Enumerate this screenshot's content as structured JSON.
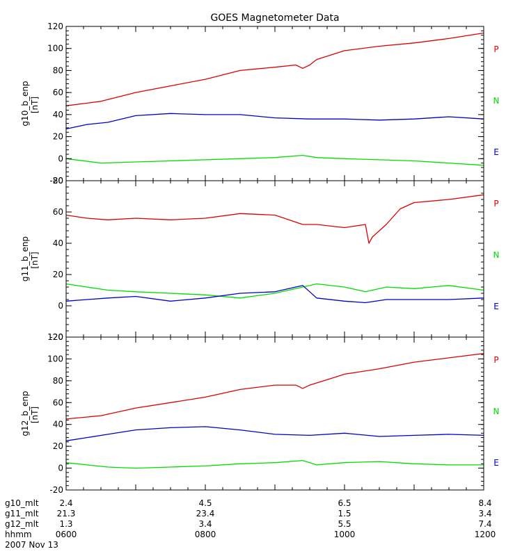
{
  "chart_data": {
    "title": "GOES Magnetometer Data",
    "type": "line",
    "x_range": [
      6,
      12
    ],
    "colors": {
      "P": "#dd0000",
      "N": "#00dd00",
      "E": "#0000cc"
    },
    "legend_labels": [
      "P",
      "N",
      "E"
    ],
    "panels": [
      {
        "ylabel": "g10_b_enp",
        "yunit": "[nT]",
        "ylim": [
          -20,
          120
        ],
        "yticks": [
          -20,
          0,
          20,
          40,
          60,
          80,
          100,
          120
        ],
        "series": [
          {
            "name": "P",
            "color": "#dd0000",
            "x": [
              6.0,
              6.5,
              7.0,
              7.5,
              8.0,
              8.5,
              9.0,
              9.3,
              9.4,
              9.5,
              9.6,
              9.8,
              10.0,
              10.5,
              11.0,
              11.5,
              12.0
            ],
            "y": [
              48,
              52,
              60,
              66,
              72,
              80,
              83,
              85,
              82,
              85,
              90,
              94,
              98,
              102,
              105,
              109,
              114
            ]
          },
          {
            "name": "E",
            "color": "#0000cc",
            "x": [
              6.0,
              6.3,
              6.6,
              7.0,
              7.5,
              8.0,
              8.5,
              9.0,
              9.5,
              10.0,
              10.5,
              11.0,
              11.5,
              12.0
            ],
            "y": [
              27,
              31,
              33,
              39,
              41,
              40,
              40,
              37,
              36,
              36,
              35,
              36,
              38,
              36
            ]
          },
          {
            "name": "N",
            "color": "#00dd00",
            "x": [
              6.0,
              6.5,
              7.0,
              7.5,
              8.0,
              8.5,
              9.0,
              9.4,
              9.6,
              10.0,
              10.5,
              11.0,
              11.5,
              12.0
            ],
            "y": [
              0,
              -4,
              -3,
              -2,
              -1,
              0,
              1,
              3,
              1,
              0,
              -1,
              -2,
              -4,
              -6
            ]
          }
        ]
      },
      {
        "ylabel": "g11_b_enp",
        "yunit": "[nT]",
        "ylim": [
          -20,
          80
        ],
        "yticks": [
          -20,
          0,
          20,
          40,
          60,
          80
        ],
        "series": [
          {
            "name": "P",
            "color": "#dd0000",
            "x": [
              6.0,
              6.3,
              6.6,
              7.0,
              7.5,
              8.0,
              8.5,
              9.0,
              9.4,
              9.6,
              10.0,
              10.3,
              10.35,
              10.4,
              10.6,
              10.8,
              11.0,
              11.5,
              12.0
            ],
            "y": [
              58,
              56,
              55,
              56,
              55,
              56,
              59,
              58,
              52,
              52,
              50,
              52,
              40,
              44,
              52,
              62,
              66,
              68,
              71
            ]
          },
          {
            "name": "N",
            "color": "#00dd00",
            "x": [
              6.0,
              6.3,
              6.6,
              7.0,
              7.5,
              8.0,
              8.5,
              9.0,
              9.4,
              9.6,
              10.0,
              10.3,
              10.6,
              11.0,
              11.5,
              12.0
            ],
            "y": [
              14,
              12,
              10,
              9,
              8,
              7,
              5,
              8,
              12,
              14,
              12,
              9,
              12,
              11,
              13,
              10
            ]
          },
          {
            "name": "E",
            "color": "#0000cc",
            "x": [
              6.0,
              6.3,
              6.6,
              7.0,
              7.5,
              8.0,
              8.5,
              9.0,
              9.4,
              9.6,
              10.0,
              10.3,
              10.6,
              11.0,
              11.5,
              12.0
            ],
            "y": [
              3,
              4,
              5,
              6,
              3,
              5,
              8,
              9,
              13,
              5,
              3,
              2,
              4,
              4,
              4,
              5
            ]
          }
        ]
      },
      {
        "ylabel": "g12_b_enp",
        "yunit": "[nT]",
        "ylim": [
          -20,
          120
        ],
        "yticks": [
          -20,
          0,
          20,
          40,
          60,
          80,
          100,
          120
        ],
        "series": [
          {
            "name": "P",
            "color": "#dd0000",
            "x": [
              6.0,
              6.5,
              7.0,
              7.5,
              8.0,
              8.5,
              9.0,
              9.3,
              9.4,
              9.5,
              9.8,
              10.0,
              10.5,
              11.0,
              11.5,
              12.0
            ],
            "y": [
              45,
              48,
              55,
              60,
              65,
              72,
              76,
              76,
              73,
              76,
              82,
              86,
              91,
              97,
              101,
              105
            ]
          },
          {
            "name": "E",
            "color": "#0000cc",
            "x": [
              6.0,
              6.3,
              6.6,
              7.0,
              7.5,
              8.0,
              8.5,
              9.0,
              9.5,
              10.0,
              10.5,
              11.0,
              11.5,
              12.0
            ],
            "y": [
              25,
              28,
              31,
              35,
              37,
              38,
              35,
              31,
              30,
              32,
              29,
              30,
              31,
              30
            ]
          },
          {
            "name": "N",
            "color": "#00dd00",
            "x": [
              6.0,
              6.3,
              6.6,
              7.0,
              7.5,
              8.0,
              8.5,
              9.0,
              9.4,
              9.6,
              10.0,
              10.5,
              11.0,
              11.5,
              12.0
            ],
            "y": [
              5,
              3,
              1,
              0,
              1,
              2,
              4,
              5,
              7,
              3,
              5,
              6,
              4,
              3,
              3
            ]
          }
        ]
      }
    ],
    "x_axis": {
      "row_labels": [
        "g10_mlt",
        "g11_mlt",
        "g12_mlt",
        "hhmm"
      ],
      "columns": [
        {
          "x": 6,
          "values": [
            "2.4",
            "21.3",
            "1.3",
            "0600"
          ]
        },
        {
          "x": 8,
          "values": [
            "4.5",
            "23.4",
            "3.4",
            "0800"
          ]
        },
        {
          "x": 10,
          "values": [
            "6.5",
            "1.5",
            "5.5",
            "1000"
          ]
        },
        {
          "x": 12,
          "values": [
            "8.4",
            "3.4",
            "7.4",
            "1200"
          ]
        }
      ],
      "date": "2007 Nov 13"
    }
  }
}
